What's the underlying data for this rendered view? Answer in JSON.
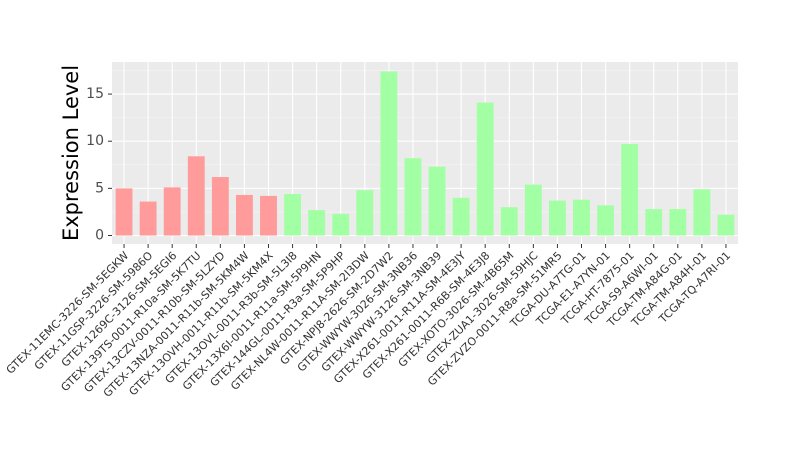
{
  "chart_data": {
    "type": "bar",
    "y_label": "Expression Level",
    "categories": [
      "GTEX-11EMC-3226-SM-5EGKW",
      "GTEX-11GSP-3226-SM-5986O",
      "GTEX-1269C-3126-SM-5EGI6",
      "GTEX-139TS-0011-R10a-SM-5K7TU",
      "GTEX-13CZV-0011-R10b-SM-5LZYD",
      "GTEX-13NZA-0011-R11b-SM-5KM4W",
      "GTEX-13OVH-0011-R11b-SM-5KM4X",
      "GTEX-13OVL-0011-R3b-SM-5L3I8",
      "GTEX-13X6I-0011-R11a-SM-5P9HN",
      "GTEX-144GL-0011-R3a-SM-5P9HP",
      "GTEX-NL4W-0011-R11A-SM-2I3DW",
      "GTEX-NPJ8-2626-SM-2D7W2",
      "GTEX-WWYW-3026-SM-3NB36",
      "GTEX-WWYW-3126-SM-3NB39",
      "GTEX-X261-0011-R11A-SM-4E3JY",
      "GTEX-X261-0011-R6B-SM-4E3J8",
      "GTEX-XOTO-3026-SM-4B65M",
      "GTEX-ZUA1-3026-SM-59HJC",
      "GTEX-ZVZO-0011-R8a-SM-51MR5",
      "TCGA-DU-A7TG-01",
      "TCGA-E1-A7YN-01",
      "TCGA-HT-7875-01",
      "TCGA-S9-A6WI-01",
      "TCGA-TM-A84G-01",
      "TCGA-TM-A84H-01",
      "TCGA-TQ-A7RI-01"
    ],
    "values": [
      5.0,
      3.6,
      5.1,
      8.4,
      6.2,
      4.3,
      4.2,
      4.4,
      2.7,
      2.3,
      4.8,
      17.4,
      8.2,
      7.3,
      4.0,
      14.1,
      3.0,
      5.4,
      3.7,
      3.8,
      3.2,
      9.7,
      2.8,
      2.8,
      4.9,
      2.2
    ],
    "colors": [
      "#ff9b9b",
      "#ff9b9b",
      "#ff9b9b",
      "#ff9b9b",
      "#ff9b9b",
      "#ff9b9b",
      "#ff9b9b",
      "#a3ffa3",
      "#a3ffa3",
      "#a3ffa3",
      "#a3ffa3",
      "#a3ffa3",
      "#a3ffa3",
      "#a3ffa3",
      "#a3ffa3",
      "#a3ffa3",
      "#a3ffa3",
      "#a3ffa3",
      "#a3ffa3",
      "#a3ffa3",
      "#a3ffa3",
      "#a3ffa3",
      "#a3ffa3",
      "#a3ffa3",
      "#a3ffa3",
      "#a3ffa3"
    ],
    "ylim": [
      -0.9,
      18.4
    ],
    "yticks": [
      0,
      5,
      10,
      15
    ],
    "grid": true
  }
}
